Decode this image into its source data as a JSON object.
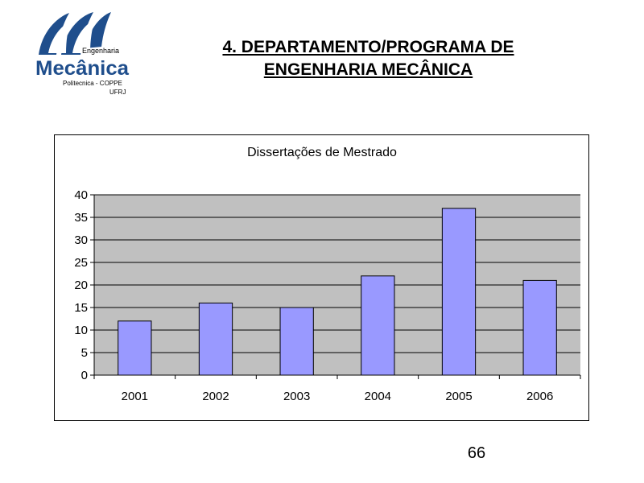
{
  "logo": {
    "top_text": "Engenharia",
    "main_text": "Mecânica",
    "sub_text": "Politecnica - COPPE",
    "sub_text2": "UFRJ",
    "brand_color": "#1f4e8c"
  },
  "slide": {
    "title_line1": "4. DEPARTAMENTO/PROGRAMA DE",
    "title_line2": "ENGENHARIA MECÂNICA",
    "page_number": "66"
  },
  "chart_data": {
    "type": "bar",
    "title": "Dissertações de Mestrado",
    "categories": [
      "2001",
      "2002",
      "2003",
      "2004",
      "2005",
      "2006"
    ],
    "values": [
      12,
      16,
      15,
      22,
      37,
      21
    ],
    "ylim": [
      0,
      40
    ],
    "yticks": [
      0,
      5,
      10,
      15,
      20,
      25,
      30,
      35,
      40
    ],
    "grid": true,
    "legend": "none",
    "colors": {
      "bar": "#9999ff",
      "plot_bg": "#c0c0c0",
      "bar_stroke": "#000000"
    }
  }
}
